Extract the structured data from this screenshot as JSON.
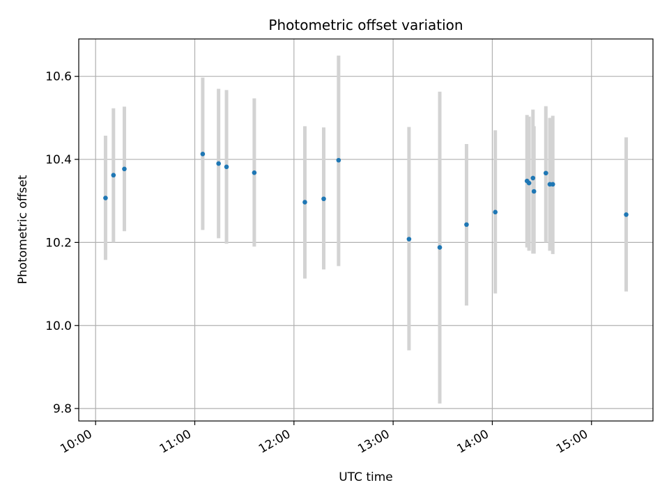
{
  "chart_data": {
    "type": "scatter",
    "title": "Photometric offset variation",
    "xlabel": "UTC time",
    "ylabel": "Photometric offset",
    "grid": true,
    "x_unit": "hours UTC",
    "xlim": [
      9.83,
      15.62
    ],
    "ylim": [
      9.77,
      10.69
    ],
    "x_ticks": [
      {
        "value": 10,
        "label": "10:00"
      },
      {
        "value": 11,
        "label": "11:00"
      },
      {
        "value": 12,
        "label": "12:00"
      },
      {
        "value": 13,
        "label": "13:00"
      },
      {
        "value": 14,
        "label": "14:00"
      },
      {
        "value": 15,
        "label": "15:00"
      }
    ],
    "y_ticks": [
      {
        "value": 9.8,
        "label": "9.8"
      },
      {
        "value": 10.0,
        "label": "10.0"
      },
      {
        "value": 10.2,
        "label": "10.2"
      },
      {
        "value": 10.4,
        "label": "10.4"
      },
      {
        "value": 10.6,
        "label": "10.6"
      }
    ],
    "colors": {
      "point": "#1f77b4",
      "errorbar": "#d3d3d3",
      "grid": "#b0b0b0"
    },
    "points": [
      {
        "x": 10.1,
        "y": 10.307,
        "lo": 10.158,
        "hi": 10.457
      },
      {
        "x": 10.18,
        "y": 10.362,
        "lo": 10.2,
        "hi": 10.523
      },
      {
        "x": 10.29,
        "y": 10.377,
        "lo": 10.227,
        "hi": 10.527
      },
      {
        "x": 11.08,
        "y": 10.413,
        "lo": 10.23,
        "hi": 10.597
      },
      {
        "x": 11.24,
        "y": 10.39,
        "lo": 10.21,
        "hi": 10.57
      },
      {
        "x": 11.32,
        "y": 10.382,
        "lo": 10.197,
        "hi": 10.567
      },
      {
        "x": 11.6,
        "y": 10.368,
        "lo": 10.19,
        "hi": 10.547
      },
      {
        "x": 12.11,
        "y": 10.297,
        "lo": 10.113,
        "hi": 10.48
      },
      {
        "x": 12.3,
        "y": 10.305,
        "lo": 10.135,
        "hi": 10.477
      },
      {
        "x": 12.45,
        "y": 10.398,
        "lo": 10.143,
        "hi": 10.65
      },
      {
        "x": 13.16,
        "y": 10.208,
        "lo": 9.94,
        "hi": 10.478
      },
      {
        "x": 13.47,
        "y": 10.188,
        "lo": 9.812,
        "hi": 10.563
      },
      {
        "x": 13.74,
        "y": 10.243,
        "lo": 10.048,
        "hi": 10.437
      },
      {
        "x": 14.03,
        "y": 10.273,
        "lo": 10.077,
        "hi": 10.47
      },
      {
        "x": 14.35,
        "y": 10.348,
        "lo": 10.188,
        "hi": 10.507
      },
      {
        "x": 14.37,
        "y": 10.343,
        "lo": 10.18,
        "hi": 10.503
      },
      {
        "x": 14.41,
        "y": 10.355,
        "lo": 10.173,
        "hi": 10.52
      },
      {
        "x": 14.42,
        "y": 10.323,
        "lo": 10.173,
        "hi": 10.48
      },
      {
        "x": 14.54,
        "y": 10.367,
        "lo": 10.2,
        "hi": 10.528
      },
      {
        "x": 14.58,
        "y": 10.34,
        "lo": 10.18,
        "hi": 10.5
      },
      {
        "x": 14.61,
        "y": 10.34,
        "lo": 10.172,
        "hi": 10.505
      },
      {
        "x": 15.35,
        "y": 10.267,
        "lo": 10.082,
        "hi": 10.453
      }
    ]
  }
}
